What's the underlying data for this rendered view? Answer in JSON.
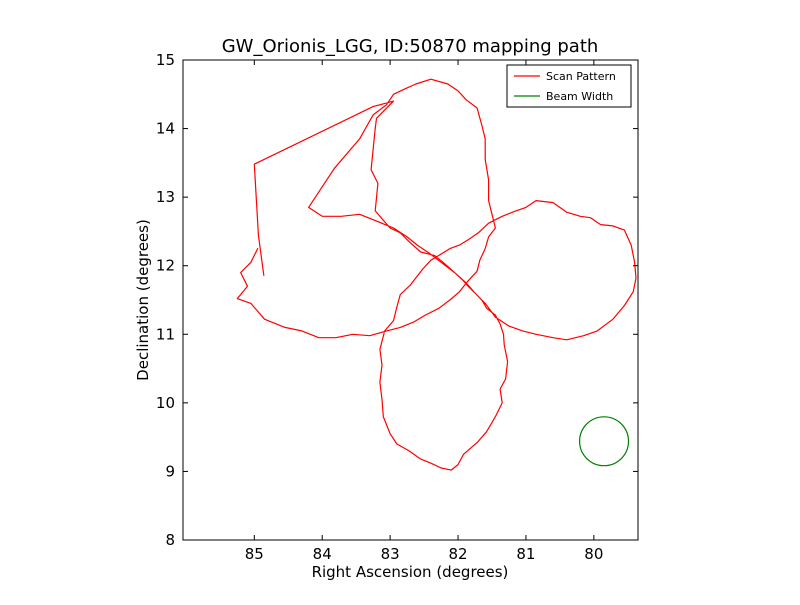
{
  "chart_data": {
    "type": "line",
    "title": "GW_Orionis_LGG, ID:50870 mapping path",
    "xlabel": "Right Ascension (degrees)",
    "ylabel": "Declination (degrees)",
    "xlim": [
      86.05,
      79.35
    ],
    "ylim": [
      8,
      15
    ],
    "x_inverted": true,
    "xticks": [
      85,
      84,
      83,
      82,
      81,
      80
    ],
    "yticks": [
      8,
      9,
      10,
      11,
      12,
      13,
      14,
      15
    ],
    "grid": false,
    "legend_position": "top-right",
    "series": [
      {
        "name": "Scan Pattern",
        "color": "#ff0000",
        "points": [
          [
            84.86,
            11.86
          ],
          [
            84.94,
            12.45
          ],
          [
            85.0,
            13.48
          ],
          [
            83.25,
            14.32
          ],
          [
            82.95,
            14.4
          ],
          [
            83.2,
            14.15
          ],
          [
            83.22,
            14.0
          ],
          [
            83.28,
            13.4
          ],
          [
            83.18,
            13.2
          ],
          [
            83.22,
            12.8
          ],
          [
            83.0,
            12.55
          ],
          [
            82.85,
            12.48
          ],
          [
            82.72,
            12.35
          ],
          [
            82.55,
            12.2
          ],
          [
            82.35,
            12.15
          ],
          [
            82.22,
            12.05
          ],
          [
            82.05,
            11.9
          ],
          [
            81.92,
            11.78
          ],
          [
            81.85,
            11.7
          ],
          [
            81.75,
            11.6
          ],
          [
            81.65,
            11.5
          ],
          [
            81.58,
            11.38
          ],
          [
            81.45,
            11.28
          ],
          [
            81.38,
            11.15
          ],
          [
            81.33,
            11.0
          ],
          [
            81.32,
            10.85
          ],
          [
            81.27,
            10.6
          ],
          [
            81.3,
            10.35
          ],
          [
            81.38,
            10.2
          ],
          [
            81.35,
            10.0
          ],
          [
            81.45,
            9.8
          ],
          [
            81.58,
            9.58
          ],
          [
            81.72,
            9.42
          ],
          [
            81.92,
            9.25
          ],
          [
            82.0,
            9.1
          ],
          [
            82.1,
            9.02
          ],
          [
            82.25,
            9.05
          ],
          [
            82.4,
            9.12
          ],
          [
            82.55,
            9.18
          ],
          [
            82.72,
            9.3
          ],
          [
            82.9,
            9.4
          ],
          [
            83.0,
            9.55
          ],
          [
            83.1,
            9.8
          ],
          [
            83.12,
            10.05
          ],
          [
            83.15,
            10.3
          ],
          [
            83.12,
            10.55
          ],
          [
            83.15,
            10.78
          ],
          [
            83.08,
            11.05
          ],
          [
            82.95,
            11.2
          ],
          [
            82.9,
            11.4
          ],
          [
            82.85,
            11.58
          ],
          [
            82.7,
            11.72
          ],
          [
            82.6,
            11.85
          ],
          [
            82.52,
            11.95
          ],
          [
            82.4,
            12.08
          ],
          [
            82.28,
            12.15
          ],
          [
            82.12,
            12.25
          ],
          [
            81.98,
            12.3
          ],
          [
            81.85,
            12.38
          ],
          [
            81.7,
            12.48
          ],
          [
            81.55,
            12.62
          ],
          [
            81.35,
            12.72
          ],
          [
            81.15,
            12.8
          ],
          [
            81.0,
            12.85
          ],
          [
            80.85,
            12.95
          ],
          [
            80.6,
            12.92
          ],
          [
            80.4,
            12.78
          ],
          [
            80.2,
            12.72
          ],
          [
            80.05,
            12.7
          ],
          [
            79.9,
            12.6
          ],
          [
            79.72,
            12.58
          ],
          [
            79.55,
            12.52
          ],
          [
            79.45,
            12.3
          ],
          [
            79.4,
            12.05
          ],
          [
            79.38,
            11.82
          ],
          [
            79.42,
            11.62
          ],
          [
            79.55,
            11.42
          ],
          [
            79.72,
            11.22
          ],
          [
            79.95,
            11.05
          ],
          [
            80.15,
            10.98
          ],
          [
            80.4,
            10.92
          ],
          [
            80.6,
            10.95
          ],
          [
            80.85,
            11.0
          ],
          [
            81.05,
            11.05
          ],
          [
            81.25,
            11.12
          ],
          [
            81.45,
            11.25
          ],
          [
            81.6,
            11.45
          ],
          [
            81.75,
            11.6
          ],
          [
            81.88,
            11.75
          ],
          [
            82.05,
            11.9
          ],
          [
            82.25,
            12.05
          ],
          [
            82.42,
            12.18
          ],
          [
            82.6,
            12.3
          ],
          [
            82.75,
            12.42
          ],
          [
            82.95,
            12.55
          ],
          [
            83.2,
            12.65
          ],
          [
            83.45,
            12.75
          ],
          [
            83.72,
            12.72
          ],
          [
            84.0,
            12.72
          ],
          [
            84.2,
            12.85
          ],
          [
            83.82,
            13.42
          ],
          [
            83.45,
            13.85
          ],
          [
            83.25,
            14.2
          ],
          [
            83.05,
            14.35
          ],
          [
            82.95,
            14.5
          ],
          [
            82.78,
            14.58
          ],
          [
            82.62,
            14.65
          ],
          [
            82.4,
            14.72
          ],
          [
            82.15,
            14.65
          ],
          [
            82.0,
            14.55
          ],
          [
            81.88,
            14.42
          ],
          [
            81.72,
            14.3
          ],
          [
            81.65,
            14.05
          ],
          [
            81.6,
            13.85
          ],
          [
            81.6,
            13.55
          ],
          [
            81.55,
            13.25
          ],
          [
            81.55,
            12.95
          ],
          [
            81.5,
            12.75
          ],
          [
            81.45,
            12.55
          ],
          [
            81.55,
            12.42
          ],
          [
            81.6,
            12.25
          ],
          [
            81.68,
            12.08
          ],
          [
            81.72,
            11.92
          ],
          [
            81.85,
            11.78
          ],
          [
            81.98,
            11.62
          ],
          [
            82.12,
            11.5
          ],
          [
            82.28,
            11.38
          ],
          [
            82.48,
            11.28
          ],
          [
            82.65,
            11.18
          ],
          [
            82.85,
            11.1
          ],
          [
            83.05,
            11.05
          ],
          [
            83.3,
            10.98
          ],
          [
            83.55,
            11.0
          ],
          [
            83.8,
            10.95
          ],
          [
            84.05,
            10.95
          ],
          [
            84.3,
            11.05
          ],
          [
            84.55,
            11.1
          ],
          [
            84.85,
            11.22
          ],
          [
            85.05,
            11.45
          ],
          [
            85.25,
            11.52
          ],
          [
            85.1,
            11.7
          ],
          [
            85.2,
            11.9
          ],
          [
            85.05,
            12.05
          ],
          [
            84.95,
            12.25
          ]
        ]
      }
    ],
    "beam": {
      "name": "Beam Width",
      "color": "#008000",
      "center": [
        79.85,
        9.44
      ],
      "radius_deg": 0.36
    }
  }
}
